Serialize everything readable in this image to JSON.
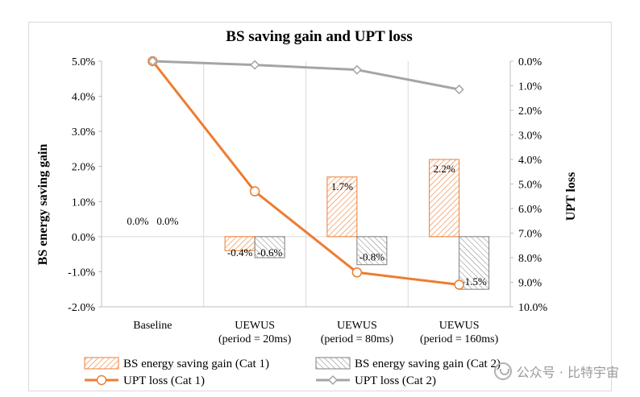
{
  "chart_data": {
    "type": "bar+line",
    "title": "BS saving gain and UPT loss",
    "ylabel_left": "BS energy saving gain",
    "ylabel_right": "UPT loss",
    "categories": [
      [
        "Baseline"
      ],
      [
        "UEWUS",
        "(period = 20ms)"
      ],
      [
        "UEWUS",
        "(period = 80ms)"
      ],
      [
        "UEWUS",
        "(period = 160ms)"
      ]
    ],
    "y_left": {
      "min": -2.0,
      "max": 5.0,
      "step": 1.0,
      "ticks": [
        "5.0%",
        "4.0%",
        "3.0%",
        "2.0%",
        "1.0%",
        "0.0%",
        "-1.0%",
        "-2.0%"
      ]
    },
    "y_right": {
      "min": 0.0,
      "max": 10.0,
      "step": 1.0,
      "inverted": true,
      "ticks": [
        "0.0%",
        "1.0%",
        "2.0%",
        "3.0%",
        "4.0%",
        "5.0%",
        "6.0%",
        "7.0%",
        "8.0%",
        "9.0%",
        "10.0%"
      ]
    },
    "bar_series": [
      {
        "name": "BS energy saving gain (Cat 1)",
        "values": [
          0.0,
          -0.4,
          1.7,
          2.2
        ],
        "labels": [
          "0.0%",
          "-0.4%",
          "1.7%",
          "2.2%"
        ],
        "color": "#ed7d31"
      },
      {
        "name": "BS energy saving gain (Cat 2)",
        "values": [
          0.0,
          -0.6,
          -0.8,
          -1.5
        ],
        "labels": [
          "0.0%",
          "-0.6%",
          "-0.8%",
          "-1.5%"
        ],
        "color": "#7f7f7f"
      }
    ],
    "line_series": [
      {
        "name": "UPT loss (Cat 1)",
        "values": [
          0.0,
          5.3,
          8.6,
          9.1
        ],
        "color": "#ed7d31",
        "marker": "circle"
      },
      {
        "name": "UPT loss (Cat 2)",
        "values": [
          0.0,
          0.15,
          0.35,
          1.15
        ],
        "color": "#a5a5a5",
        "marker": "diamond"
      }
    ],
    "grid": "vertical",
    "legend_position": "bottom"
  },
  "watermark": "公众号 · 比特宇宙"
}
